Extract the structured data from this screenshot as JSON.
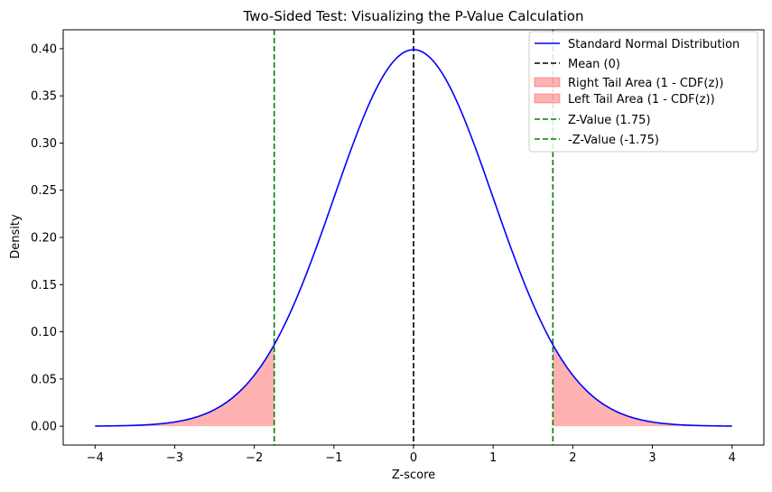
{
  "chart_data": {
    "type": "line",
    "title": "Two-Sided Test: Visualizing the P-Value Calculation",
    "xlabel": "Z-score",
    "ylabel": "Density",
    "xlim": [
      -4.4,
      4.4
    ],
    "ylim": [
      -0.02,
      0.42
    ],
    "xticks": [
      "−4",
      "−3",
      "−2",
      "−1",
      "0",
      "1",
      "2",
      "3",
      "4"
    ],
    "xtick_values": [
      -4,
      -3,
      -2,
      -1,
      0,
      1,
      2,
      3,
      4
    ],
    "yticks": [
      "0.00",
      "0.05",
      "0.10",
      "0.15",
      "0.20",
      "0.25",
      "0.30",
      "0.35",
      "0.40"
    ],
    "ytick_values": [
      0,
      0.05,
      0.1,
      0.15,
      0.2,
      0.25,
      0.3,
      0.35,
      0.4
    ],
    "grid": false,
    "legend_position": "top-right",
    "z_value": 1.75,
    "curve": {
      "name": "Standard Normal Distribution",
      "color": "#0000ff",
      "x_range": [
        -4,
        4
      ],
      "function": "standard normal pdf"
    },
    "mean_line": {
      "name": "Mean (0)",
      "x": 0,
      "color": "#000000"
    },
    "right_tail": {
      "name": "Right Tail Area (1 - CDF(z))",
      "from": 1.75,
      "to": 4,
      "color": "#ff9999"
    },
    "left_tail": {
      "name": "Left Tail Area (1 - CDF(z))",
      "from": -4,
      "to": -1.75,
      "color": "#ff9999"
    },
    "z_line_pos": {
      "name": "Z-Value (1.75)",
      "x": 1.75,
      "color": "#008000"
    },
    "z_line_neg": {
      "name": "-Z-Value (-1.75)",
      "x": -1.75,
      "color": "#008000"
    },
    "legend": [
      "Standard Normal Distribution",
      "Mean (0)",
      "Right Tail Area (1 - CDF(z))",
      "Left Tail Area (1 - CDF(z))",
      "Z-Value (1.75)",
      "-Z-Value (-1.75)"
    ]
  }
}
